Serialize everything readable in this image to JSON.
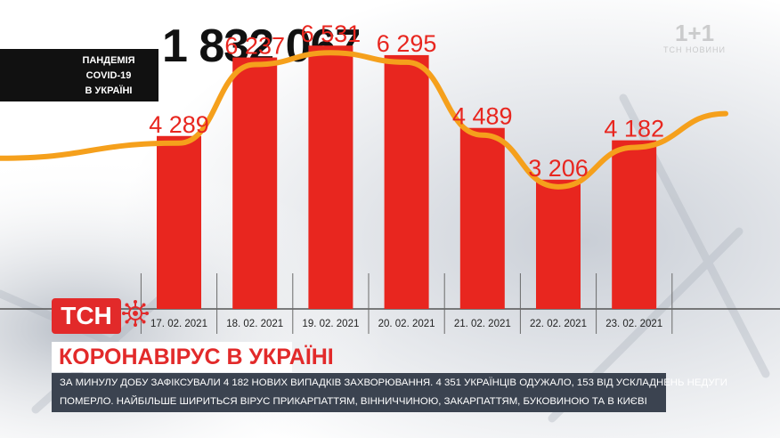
{
  "total_cases": "1 832 067",
  "tag": {
    "line1": "ПАНДЕМІЯ",
    "line2": "COVID-19",
    "line3": "В УКРАЇНІ"
  },
  "watermark": {
    "logo": "1+1",
    "sub": "ТСН НОВИНИ"
  },
  "brand": {
    "name": "ТСН",
    "red": "#e22a2a"
  },
  "headline": "КОРОНАВІРУС В УКРАЇНІ",
  "ticker": {
    "line1": "ЗА МИНУЛУ ДОБУ ЗАФІКСУВАЛИ 4 182 НОВИХ ВИПАДКІВ ЗАХВОРЮВАННЯ. 4 351 УКРАЇНЦІВ ОДУЖАЛО, 153 ВІД УСКЛАДНЕНЬ НЕДУГИ",
    "line2": "ПОМЕРЛО. НАЙБІЛЬШЕ ШИРИТЬСЯ ВІРУС ПРИКАРПАТТЯМ, ВІННИЧЧИНОЮ, ЗАКАРПАТТЯМ, БУКОВИНОЮ ТА В КИЄВІ"
  },
  "chart_data": {
    "type": "bar",
    "categories": [
      "17. 02. 2021",
      "18. 02. 2021",
      "19. 02. 2021",
      "20. 02. 2021",
      "21. 02. 2021",
      "22. 02. 2021",
      "23. 02. 2021"
    ],
    "values": [
      4289,
      6237,
      6531,
      6295,
      4489,
      3206,
      4182
    ],
    "value_labels": [
      "4 289",
      "6 237",
      "6 531",
      "6 295",
      "4 489",
      "3 206",
      "4 182"
    ],
    "trend_line": "smooth line through the bar tops, extending beyond the first and last bar",
    "ylim": [
      0,
      7000
    ],
    "grid": false,
    "bar_color": "#e8261f",
    "trend_color": "#f5a01c",
    "label_color": "#e8261f"
  }
}
